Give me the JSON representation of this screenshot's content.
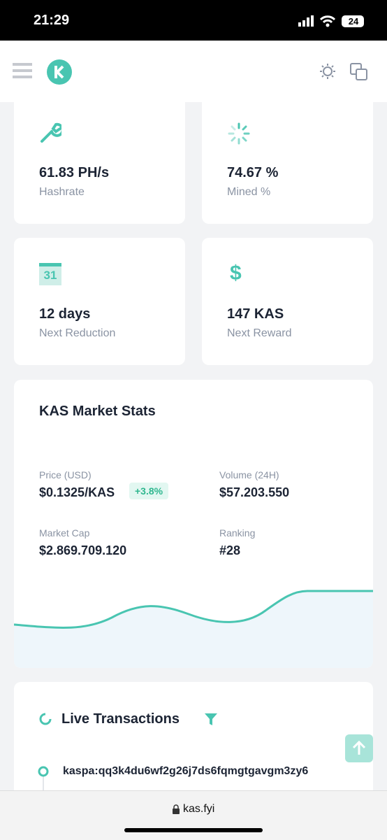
{
  "status_bar": {
    "time": "21:29",
    "battery": "24"
  },
  "stats": [
    {
      "value": "61.83 PH/s",
      "label": "Hashrate"
    },
    {
      "value": "74.67 %",
      "label": "Mined %"
    },
    {
      "value": "12 days",
      "label": "Next Reduction",
      "icon_text": "31"
    },
    {
      "value": "147 KAS",
      "label": "Next Reward",
      "icon_text": "$"
    }
  ],
  "market": {
    "title": "KAS Market Stats",
    "items": [
      {
        "label": "Price (USD)",
        "value": "$0.1325/KAS",
        "change": "+3.8%"
      },
      {
        "label": "Volume (24H)",
        "value": "$57.203.550"
      },
      {
        "label": "Market Cap",
        "value": "$2.869.709.120"
      },
      {
        "label": "Ranking",
        "value": "#28"
      }
    ]
  },
  "live": {
    "title": "Live Transactions",
    "address": "kaspa:qq3k4du6wf2g26j7ds6fqmgtgavgm3zy6"
  },
  "address_bar": {
    "url": "kas.fyi"
  }
}
